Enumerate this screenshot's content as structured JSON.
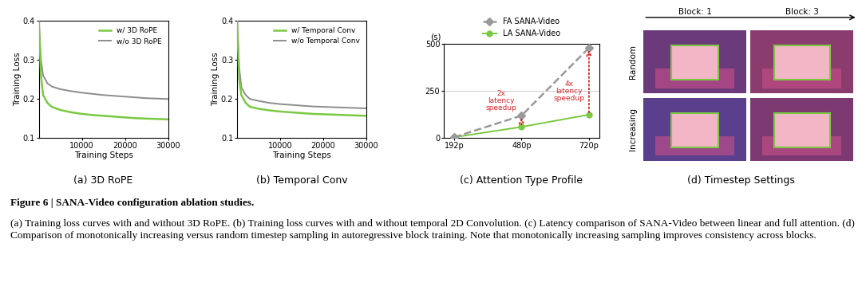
{
  "chart_data": [
    {
      "type": "line",
      "title": "(a) 3D RoPE",
      "x_label": "Training Steps",
      "y_label": "Training Loss",
      "x": [
        0,
        500,
        1000,
        2000,
        3000,
        5000,
        7500,
        10000,
        12500,
        15000,
        17500,
        20000,
        22500,
        25000,
        27500,
        30000
      ],
      "series": [
        {
          "name": "w/ 3D RoPE",
          "color": "#7ac943",
          "values": [
            0.4,
            0.26,
            0.21,
            0.19,
            0.18,
            0.172,
            0.166,
            0.162,
            0.159,
            0.157,
            0.155,
            0.153,
            0.151,
            0.15,
            0.149,
            0.148
          ]
        },
        {
          "name": "w/o 3D RoPE",
          "color": "#8c8c8c",
          "values": [
            0.4,
            0.3,
            0.26,
            0.24,
            0.232,
            0.225,
            0.22,
            0.216,
            0.213,
            0.21,
            0.208,
            0.206,
            0.204,
            0.202,
            0.201,
            0.2
          ]
        }
      ],
      "xlim": [
        0,
        30000
      ],
      "xticks": [
        10000,
        20000,
        30000
      ],
      "ylim": [
        0.1,
        0.4
      ],
      "yticks": [
        0.1,
        0.2,
        0.3,
        0.4
      ],
      "legend": "upper right"
    },
    {
      "type": "line",
      "title": "(b) Temporal Conv",
      "x_label": "Training Steps",
      "y_label": "Training Loss",
      "x": [
        0,
        500,
        1000,
        2000,
        3000,
        5000,
        7500,
        10000,
        12500,
        15000,
        17500,
        20000,
        22500,
        25000,
        27500,
        30000
      ],
      "series": [
        {
          "name": "w/ Temporal Conv",
          "color": "#7ac943",
          "values": [
            0.4,
            0.25,
            0.21,
            0.19,
            0.18,
            0.175,
            0.171,
            0.168,
            0.166,
            0.164,
            0.162,
            0.161,
            0.16,
            0.159,
            0.158,
            0.157
          ]
        },
        {
          "name": "w/o Temporal Conv",
          "color": "#8c8c8c",
          "values": [
            0.4,
            0.28,
            0.23,
            0.21,
            0.2,
            0.195,
            0.19,
            0.187,
            0.185,
            0.183,
            0.181,
            0.18,
            0.179,
            0.178,
            0.177,
            0.176
          ]
        }
      ],
      "xlim": [
        0,
        30000
      ],
      "xticks": [
        10000,
        20000,
        30000
      ],
      "ylim": [
        0.1,
        0.4
      ],
      "yticks": [
        0.1,
        0.2,
        0.3,
        0.4
      ],
      "legend": "upper right"
    },
    {
      "type": "line",
      "title": "(c) Attention Type Profile",
      "y_label": "(s)",
      "categories": [
        "192p",
        "480p",
        "720p"
      ],
      "series": [
        {
          "name": "FA SANA-Video",
          "color": "#999999",
          "marker": "diamond",
          "line_style": "dashed",
          "values": [
            5,
            120,
            480
          ]
        },
        {
          "name": "LA SANA-Video",
          "color": "#7ac943",
          "marker": "circle",
          "line_style": "solid",
          "values": [
            5,
            60,
            125
          ]
        }
      ],
      "ylim": [
        0,
        500
      ],
      "yticks": [
        0,
        250,
        500
      ],
      "grid": true,
      "legend": "top",
      "annotations": [
        {
          "text": "2x\nlatency\nspeedup",
          "category": "480p"
        },
        {
          "text": "4x\nlatency\nspeedup",
          "category": "720p"
        }
      ]
    }
  ],
  "panel_d": {
    "title": "(d) Timestep Settings",
    "columns": [
      "Block: 1",
      "Block: 3"
    ],
    "rows": [
      "Random",
      "Increasing"
    ]
  },
  "caption": {
    "heading": "Figure 6 | SANA-Video configuration ablation studies.",
    "text": "(a) Training loss curves with and without 3D RoPE. (b) Training loss curves with and without temporal 2D Convolution. (c) Latency comparison of SANA-Video between linear and full attention. (d) Comparison of monotonically increasing versus random timestep sampling in autoregressive block training. Note that monotonically increasing sampling improves consistency across blocks."
  }
}
